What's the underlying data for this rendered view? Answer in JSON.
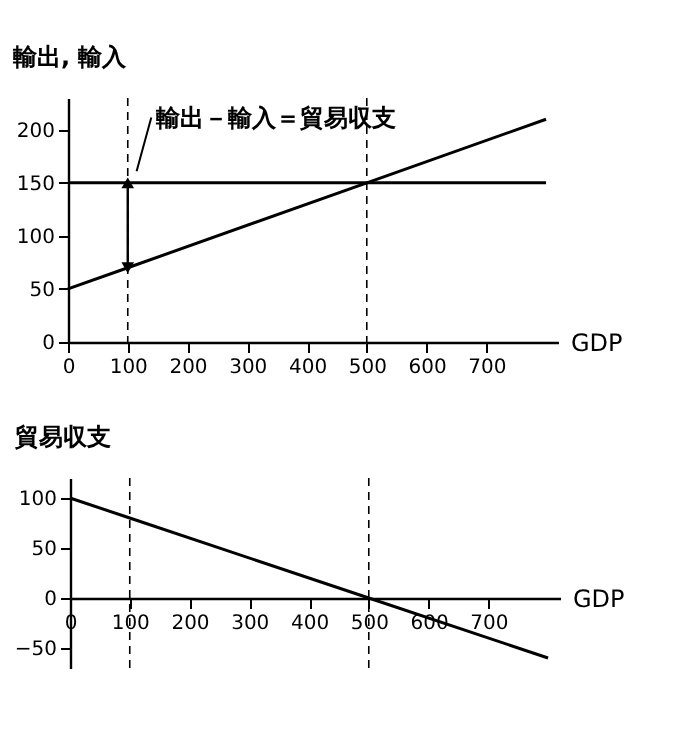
{
  "chart_data": [
    {
      "type": "line",
      "xlabel": "GDP",
      "ylabel": "輸出, 輸入",
      "xlim": [
        0,
        820
      ],
      "ylim": [
        0,
        230
      ],
      "xticks": [
        0,
        100,
        200,
        300,
        400,
        500,
        600,
        700
      ],
      "yticks": [
        0,
        50,
        100,
        150,
        200
      ],
      "grid": false,
      "legend": false,
      "marker": "none",
      "line_style": "solid",
      "series": [
        {
          "color": "#000000",
          "x": [
            0,
            100,
            500,
            800
          ],
          "values": [
            150,
            150,
            150,
            150
          ]
        },
        {
          "color": "#000000",
          "x": [
            0,
            100,
            500,
            800
          ],
          "values": [
            50,
            70,
            150,
            210
          ]
        }
      ],
      "ref_lines": [
        {
          "axis": "x",
          "value": 100,
          "line_style": "dashed"
        },
        {
          "axis": "x",
          "value": 500,
          "line_style": "dashed"
        }
      ],
      "annotations": [
        "輸出－輸入＝貿易収支"
      ]
    },
    {
      "type": "line",
      "xlabel": "GDP",
      "ylabel": "貿易収支",
      "xlim": [
        0,
        820
      ],
      "ylim": [
        -70,
        120
      ],
      "xticks": [
        0,
        100,
        200,
        300,
        400,
        500,
        600,
        700
      ],
      "yticks": [
        -50,
        0,
        50,
        100
      ],
      "grid": false,
      "legend": false,
      "marker": "none",
      "line_style": "solid",
      "series": [
        {
          "color": "#000000",
          "x": [
            0,
            100,
            500,
            800
          ],
          "values": [
            100,
            80,
            0,
            -60
          ]
        }
      ],
      "ref_lines": [
        {
          "axis": "x",
          "value": 100,
          "line_style": "dashed"
        },
        {
          "axis": "x",
          "value": 500,
          "line_style": "dashed"
        }
      ]
    }
  ]
}
